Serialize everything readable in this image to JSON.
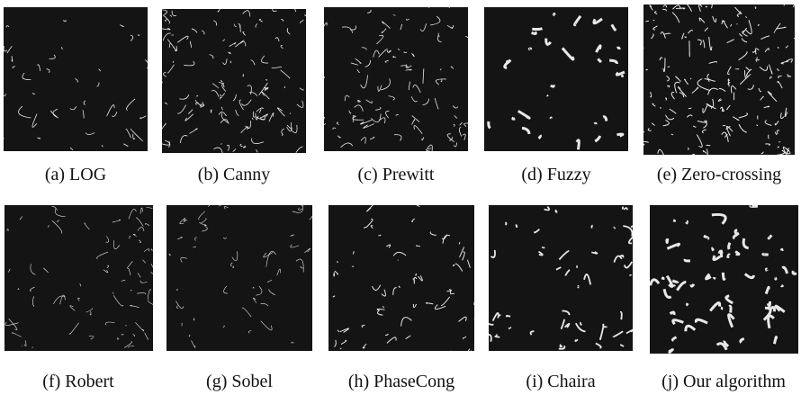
{
  "figure": {
    "panels": [
      {
        "caption": "(a) LOG"
      },
      {
        "caption": "(b) Canny"
      },
      {
        "caption": "(c) Prewitt"
      },
      {
        "caption": "(d) Fuzzy"
      },
      {
        "caption": "(e) Zero-crossing"
      },
      {
        "caption": "(f) Robert"
      },
      {
        "caption": "(g) Sobel"
      },
      {
        "caption": "(h) PhaseCong"
      },
      {
        "caption": "(i) Chaira"
      },
      {
        "caption": "(j) Our algorithm"
      }
    ]
  }
}
